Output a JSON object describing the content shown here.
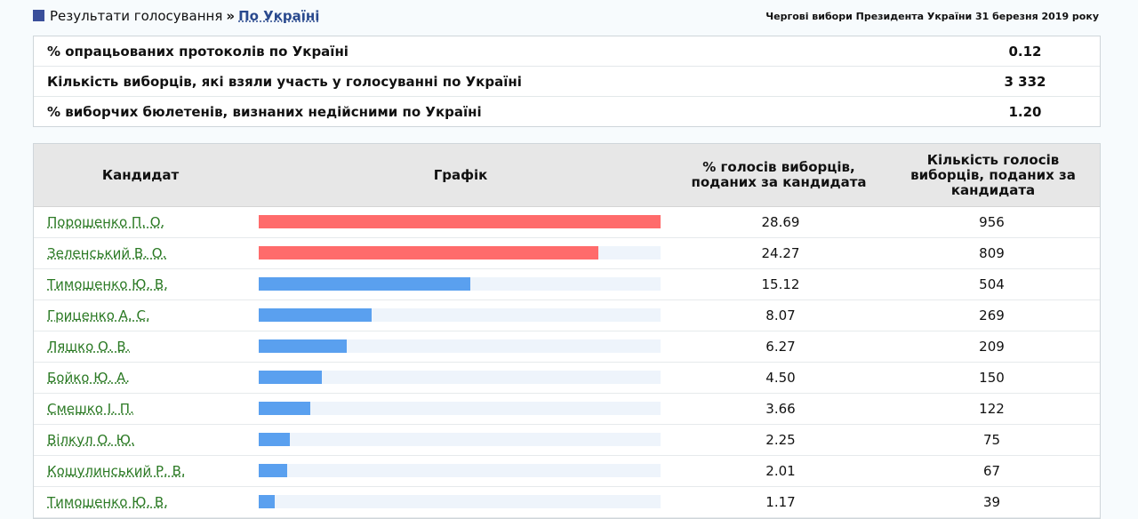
{
  "header": {
    "breadcrumb_root": "Результати голосування",
    "breadcrumb_sep": "»",
    "breadcrumb_current": "По Україні",
    "election_title": "Чергові вибори Президента України 31 березня 2019 року"
  },
  "summary": [
    {
      "label": "% опрацьованих протоколів по Україні",
      "value": "0.12"
    },
    {
      "label": "Кількість виборців, які взяли участь у голосуванні по Україні",
      "value": "3 332"
    },
    {
      "label": "% виборчих бюлетенів, визнаних недійсними по Україні",
      "value": "1.20"
    }
  ],
  "table": {
    "col_candidate": "Кандидат",
    "col_graph": "Графік",
    "col_percent": "% голосів виборців, поданих за кандидата",
    "col_count": "Кількість голосів виборців, поданих за кандидата"
  },
  "colors": {
    "leader_bar": "#ff6b6b",
    "other_bar": "#5aa0ef",
    "bar_track": "#eef4fb"
  },
  "chart_data": {
    "type": "bar",
    "categories": [
      "Порошенко П. О.",
      "Зеленський В. О.",
      "Тимошенко Ю. В.",
      "Гриценко А. С.",
      "Ляшко О. В.",
      "Бойко Ю. А.",
      "Смешко І. П.",
      "Вілкул О. Ю.",
      "Кошулинський Р. В.",
      "Тимошенко Ю. В."
    ],
    "percent": [
      "28.69",
      "24.27",
      "15.12",
      "8.07",
      "6.27",
      "4.50",
      "3.66",
      "2.25",
      "2.01",
      "1.17"
    ],
    "counts": [
      "956",
      "809",
      "504",
      "269",
      "209",
      "150",
      "122",
      "75",
      "67",
      "39"
    ],
    "values": [
      28.69,
      24.27,
      15.12,
      8.07,
      6.27,
      4.5,
      3.66,
      2.25,
      2.01,
      1.17
    ],
    "leaders": [
      true,
      true,
      false,
      false,
      false,
      false,
      false,
      false,
      false,
      false
    ]
  }
}
